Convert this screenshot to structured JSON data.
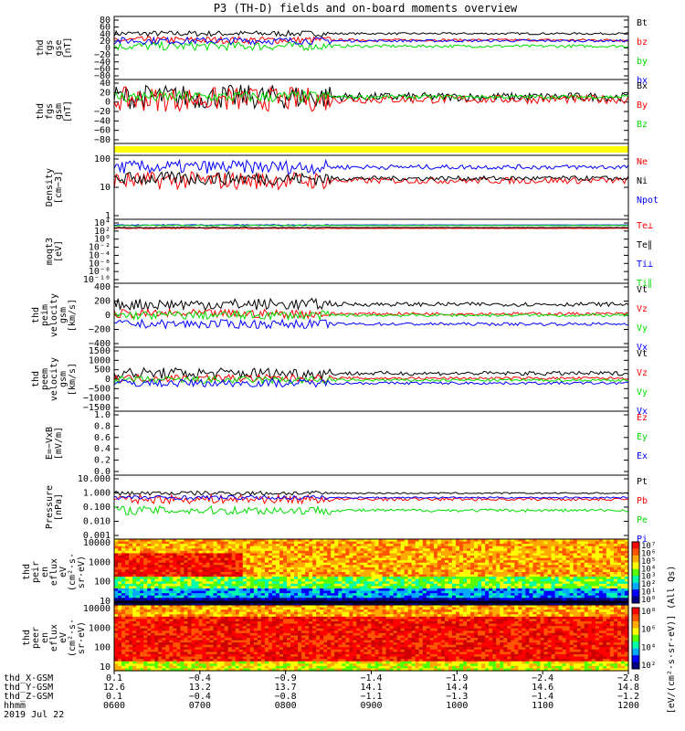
{
  "title": "P3 (TH-D) fields and on-board moments overview",
  "colors": {
    "black": "#000000",
    "red": "#ff0000",
    "green": "#00dd00",
    "blue": "#0000ff",
    "yellow": "#ffff00"
  },
  "chart_data": [
    {
      "id": "fgs_gse",
      "type": "line",
      "ylabel_lines": [
        "thd",
        "fgs",
        "gse",
        "[nT]"
      ],
      "ylim": [
        -80,
        80
      ],
      "yticks": [
        "80",
        "60",
        "40",
        "20",
        "0",
        "−20",
        "−40",
        "−60",
        "−80"
      ],
      "series": [
        {
          "name": "Bt",
          "color": "#000000",
          "base": 40,
          "amp": 8
        },
        {
          "name": "bz",
          "color": "#ff0000",
          "base": 22,
          "amp": 10
        },
        {
          "name": "by",
          "color": "#00dd00",
          "base": 5,
          "amp": 12
        },
        {
          "name": "bx",
          "color": "#0000ff",
          "base": 20,
          "amp": 10
        }
      ]
    },
    {
      "id": "fgs_gsm",
      "type": "line",
      "ylabel_lines": [
        "thd",
        "fgs",
        "gsm",
        "[nT]"
      ],
      "ylim": [
        -80,
        40
      ],
      "yticks": [
        "40",
        "20",
        "0",
        "−20",
        "−40",
        "−60",
        "−80"
      ],
      "series": [
        {
          "name": "Bx",
          "color": "#000000",
          "base": 10,
          "amp": 25
        },
        {
          "name": "By",
          "color": "#ff0000",
          "base": 5,
          "amp": 25
        },
        {
          "name": "Bz",
          "color": "#00dd00",
          "base": 10,
          "amp": 12
        }
      ]
    },
    {
      "id": "mode_bar",
      "type": "area",
      "note_color": "#ffff00"
    },
    {
      "id": "density",
      "type": "line",
      "ylabel_lines": [
        "Density",
        "[cm−3]"
      ],
      "log": true,
      "ylim": [
        0.5,
        200
      ],
      "yticks": [
        "100",
        "10",
        "1"
      ],
      "series": [
        {
          "name": "Ne",
          "color": "#ff0000",
          "base": 20,
          "amp": 0.4
        },
        {
          "name": "Ni",
          "color": "#000000",
          "base": 25,
          "amp": 0.3
        },
        {
          "name": "Npot",
          "color": "#0000ff",
          "base": 80,
          "amp": 0.3
        }
      ]
    },
    {
      "id": "temperature",
      "type": "line",
      "ylabel_lines": [
        "moqt3",
        "[eV]"
      ],
      "log": true,
      "ylim": [
        1e-10,
        10000
      ],
      "yticks": [
        "10⁴",
        "10²",
        "10⁰",
        "10⁻²",
        "10⁻⁴",
        "10⁻⁶",
        "10⁻⁸",
        "10⁻¹⁰"
      ],
      "series": [
        {
          "name": "Te⊥",
          "color": "#ff0000",
          "base": 300,
          "amp": 0.1
        },
        {
          "name": "Te∥",
          "color": "#000000",
          "base": 500,
          "amp": 0.1
        },
        {
          "name": "Ti⊥",
          "color": "#0000ff",
          "base": 2000,
          "amp": 0.1
        },
        {
          "name": "Ti∥",
          "color": "#00dd00",
          "base": 1500,
          "amp": 0.1
        }
      ]
    },
    {
      "id": "peim_velocity",
      "type": "line",
      "ylabel_lines": [
        "thd",
        "peim",
        "velocity",
        "gsm",
        "[km/s]"
      ],
      "ylim": [
        -400,
        400
      ],
      "yticks": [
        "400",
        "200",
        "0",
        "−200",
        "−400"
      ],
      "series": [
        {
          "name": "Vt",
          "color": "#000000",
          "base": 150,
          "amp": 80
        },
        {
          "name": "Vz",
          "color": "#ff0000",
          "base": 20,
          "amp": 60
        },
        {
          "name": "Vy",
          "color": "#00dd00",
          "base": 0,
          "amp": 60
        },
        {
          "name": "Vx",
          "color": "#0000ff",
          "base": -120,
          "amp": 60
        }
      ]
    },
    {
      "id": "peem_velocity",
      "type": "line",
      "ylabel_lines": [
        "thd",
        "peem",
        "velocity",
        "gsm",
        "[km/s]"
      ],
      "ylim": [
        -1500,
        1500
      ],
      "yticks": [
        "1500",
        "1000",
        "500",
        "0",
        "−500",
        "−1000",
        "−1500"
      ],
      "series": [
        {
          "name": "Vt",
          "color": "#000000",
          "base": 300,
          "amp": 300
        },
        {
          "name": "Vz",
          "color": "#ff0000",
          "base": 50,
          "amp": 200
        },
        {
          "name": "Vy",
          "color": "#00dd00",
          "base": -50,
          "amp": 200
        },
        {
          "name": "Vx",
          "color": "#0000ff",
          "base": -200,
          "amp": 200
        }
      ]
    },
    {
      "id": "efield",
      "type": "line",
      "ylabel_lines": [
        "E=−VxB",
        "[mV/m]"
      ],
      "ylim": [
        0,
        1
      ],
      "yticks": [
        "1.0",
        "0.8",
        "0.6",
        "0.4",
        "0.2",
        "0.0"
      ],
      "series": [
        {
          "name": "Ez",
          "color": "#ff0000"
        },
        {
          "name": "Ey",
          "color": "#00dd00"
        },
        {
          "name": "Ex",
          "color": "#0000ff"
        }
      ]
    },
    {
      "id": "pressure",
      "type": "line",
      "ylabel_lines": [
        "Pressure",
        "[nPa]"
      ],
      "log": true,
      "ylim": [
        0.001,
        10
      ],
      "yticks": [
        "10.000",
        "1.000",
        "0.100",
        "0.010",
        "0.001"
      ],
      "series": [
        {
          "name": "Pt",
          "color": "#000000",
          "base": 0.9,
          "amp": 0.15
        },
        {
          "name": "Pb",
          "color": "#ff0000",
          "base": 0.35,
          "amp": 0.3
        },
        {
          "name": "Pe",
          "color": "#00dd00",
          "base": 0.06,
          "amp": 0.3
        },
        {
          "name": "Pi",
          "color": "#0000ff",
          "base": 0.45,
          "amp": 0.15
        }
      ]
    },
    {
      "id": "peir_spectrogram",
      "type": "heatmap",
      "ylabel_lines": [
        "thd",
        "peir",
        "en",
        "eflux",
        "eV",
        "(cm²·s·",
        "sr·eV)"
      ],
      "log": true,
      "ylim": [
        5,
        20000
      ],
      "yticks": [
        "10000",
        "1000",
        "100",
        "10"
      ],
      "colorbar_ticks": [
        "10⁷",
        "10⁶",
        "10⁵",
        "10⁴",
        "10³",
        "10²",
        "10¹",
        "10⁰"
      ]
    },
    {
      "id": "peer_spectrogram",
      "type": "heatmap",
      "ylabel_lines": [
        "thd",
        "peer",
        "en",
        "eflux",
        "eV",
        "(cm²·s·",
        "sr·eV)"
      ],
      "log": true,
      "ylim": [
        5,
        20000
      ],
      "yticks": [
        "10000",
        "1000",
        "100",
        "10"
      ],
      "colorbar_ticks": [
        "10⁸",
        "10⁶",
        "10⁴",
        "10²"
      ]
    }
  ],
  "colorbar_label": "[eV/(cm²·s·sr·eV)] (All Qs)",
  "colorbar_label2": "(All Qs)",
  "ephemeris": {
    "row_labels": [
      "thd_X-GSM",
      "thd_Y-GSM",
      "thd_Z-GSM",
      "hhmm",
      "2019 Jul 22"
    ],
    "columns": [
      {
        "x": "0.1",
        "y": "12.6",
        "z": "0.1",
        "t": "0600"
      },
      {
        "x": "−0.4",
        "y": "13.2",
        "z": "−0.4",
        "t": "0700"
      },
      {
        "x": "−0.9",
        "y": "13.7",
        "z": "−0.8",
        "t": "0800"
      },
      {
        "x": "−1.4",
        "y": "14.1",
        "z": "−1.1",
        "t": "0900"
      },
      {
        "x": "−1.9",
        "y": "14.4",
        "z": "−1.3",
        "t": "1000"
      },
      {
        "x": "−2.4",
        "y": "14.6",
        "z": "−1.4",
        "t": "1100"
      },
      {
        "x": "−2.8",
        "y": "14.8",
        "z": "−1.2",
        "t": "1200"
      }
    ]
  }
}
